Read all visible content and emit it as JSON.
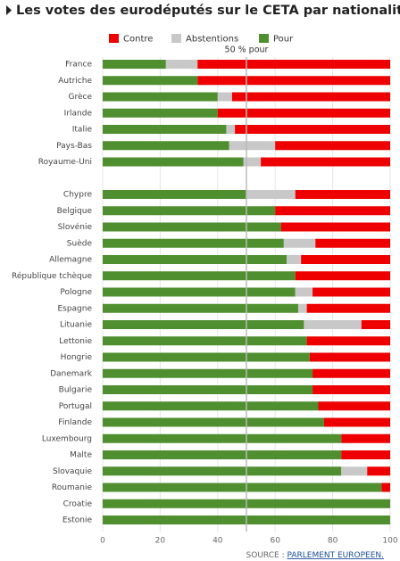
{
  "chart_data": {
    "type": "stacked-barh",
    "title": "Les votes des eurodéputés sur le CETA par nationalité",
    "categories": [
      "France",
      "Autriche",
      "Grèce",
      "Irlande",
      "Italie",
      "Pays-Bas",
      "Royaume-Uni",
      null,
      "Chypre",
      "Belgique",
      "Slovénie",
      "Suède",
      "Allemagne",
      "République tchèque",
      "Pologne",
      "Espagne",
      "Lituanie",
      "Lettonie",
      "Hongrie",
      "Danemark",
      "Bulgarie",
      "Portugal",
      "Finlande",
      "Luxembourg",
      "Malte",
      "Slovaquie",
      "Roumanie",
      "Croatie",
      "Estonie"
    ],
    "series": [
      {
        "name": "Pour",
        "color": "#4f8f2f",
        "values": [
          22,
          33,
          40,
          40,
          43,
          44,
          49,
          null,
          50,
          60,
          62,
          63,
          64,
          67,
          67,
          68,
          70,
          71,
          72,
          73,
          73,
          75,
          77,
          83,
          83,
          83,
          97,
          100,
          100
        ]
      },
      {
        "name": "Abstentions",
        "color": "#c8c8c8",
        "values": [
          11,
          0,
          5,
          0,
          3,
          16,
          6,
          null,
          17,
          0,
          0,
          11,
          5,
          0,
          6,
          3,
          20,
          0,
          0,
          0,
          0,
          0,
          0,
          0,
          0,
          9,
          0,
          0,
          0
        ]
      },
      {
        "name": "Contre",
        "color": "#ee0000",
        "values": [
          67,
          67,
          55,
          60,
          54,
          40,
          45,
          null,
          33,
          40,
          38,
          26,
          31,
          33,
          27,
          29,
          10,
          29,
          28,
          27,
          27,
          25,
          23,
          17,
          17,
          8,
          3,
          0,
          0
        ]
      }
    ],
    "xlim": [
      0,
      100
    ],
    "xticks": [
      0,
      20,
      40,
      60,
      80,
      100
    ],
    "grid": true,
    "reference_line": {
      "value": 50,
      "label": "50 % pour"
    },
    "source_label": "SOURCE :",
    "source": "PARLEMENT EUROPEEN."
  }
}
